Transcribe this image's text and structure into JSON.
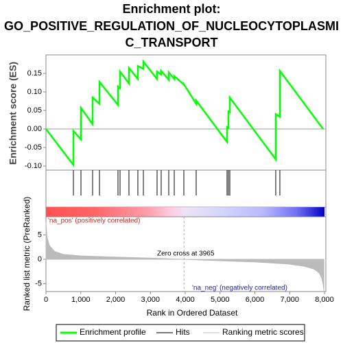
{
  "chart_data": {
    "type": "line",
    "title": [
      "Enrichment plot:",
      "GO_POSITIVE_REGULATION_OF_NUCLEOCYTOPLASMI",
      "C_TRANSPORT"
    ],
    "ylabel": "Enrichment score (ES)",
    "y2label": "Ranked list metric (PreRanked)",
    "xlabel": "Rank in Ordered Dataset",
    "xlim": [
      0,
      8040
    ],
    "xticks": [
      0,
      {
        "value": 1000,
        "label": "1,000"
      },
      {
        "value": 2000,
        "label": "2,000"
      },
      {
        "value": 3000,
        "label": "3,000"
      },
      {
        "value": 4000,
        "label": "4,000"
      },
      {
        "value": 5000,
        "label": "5,000"
      },
      {
        "value": 6000,
        "label": "6,000"
      },
      {
        "value": 7000,
        "label": "7,000"
      },
      {
        "value": 8000,
        "label": "8,000"
      }
    ],
    "ylim": [
      -0.111,
      0.2
    ],
    "yticks": [
      {
        "value": -0.1,
        "label": "-0.10"
      },
      {
        "value": -0.05,
        "label": "-0.05"
      },
      {
        "value": 0,
        "label": "0.00"
      },
      {
        "value": 0.05,
        "label": "0.05"
      },
      {
        "value": 0.1,
        "label": "0.10"
      },
      {
        "value": 0.15,
        "label": "0.15"
      }
    ],
    "y2lim": [
      -6.6,
      8.7
    ],
    "y2ticks": [
      5,
      0,
      -5
    ],
    "series": [
      {
        "name": "Enrichment profile",
        "color": "#00ff00",
        "x": [
          0,
          788,
          788,
          1005,
          1005,
          1340,
          1340,
          1537,
          1537,
          2069,
          2069,
          2128,
          2128,
          2384,
          2384,
          2640,
          2640,
          2798,
          2798,
          3192,
          3192,
          3310,
          3310,
          3527,
          3527,
          3685,
          3685,
          3961,
          3961,
          4315,
          4315,
          5202,
          5202,
          5241,
          5241,
          5281,
          5281,
          6601,
          6601,
          6719,
          6719,
          7962
        ],
        "values": [
          0,
          -0.097,
          -0.005,
          -0.028,
          0.057,
          0.013,
          0.085,
          0.068,
          0.127,
          0.065,
          0.115,
          0.11,
          0.155,
          0.123,
          0.165,
          0.135,
          0.17,
          0.162,
          0.182,
          0.135,
          0.155,
          0.147,
          0.157,
          0.133,
          0.153,
          0.135,
          0.143,
          0.12,
          0.121,
          0.068,
          0.077,
          -0.035,
          0.005,
          0.003,
          0.047,
          0.045,
          0.085,
          -0.082,
          0.04,
          0.033,
          0.157,
          0
        ]
      }
    ],
    "hits": {
      "name": "Hits",
      "color": "#000000",
      "values": [
        788,
        1005,
        1340,
        1537,
        2069,
        2128,
        2384,
        2640,
        2798,
        3192,
        3310,
        3527,
        3685,
        3961,
        4315,
        5202,
        5241,
        5281,
        6601,
        6719
      ]
    },
    "metric": {
      "name": "Ranking metric scores",
      "color": "#bbbbbb",
      "x": [
        0,
        30,
        100,
        250,
        500,
        1000,
        2000,
        3000,
        3965,
        5000,
        6000,
        6500,
        7000,
        7400,
        7700,
        7850,
        7920,
        7960,
        7985
      ],
      "values": [
        7.5,
        4.5,
        2.8,
        1.6,
        1.0,
        0.7,
        0.45,
        0.25,
        0,
        -0.3,
        -0.55,
        -0.75,
        -1.0,
        -1.4,
        -2.0,
        -2.8,
        -3.8,
        -5,
        -6.4
      ]
    },
    "zero_cross": 3965,
    "annotations": [
      "Zero cross at 3965",
      "'na_pos' (positively correlated)",
      "'na_neg' (negatively correlated)"
    ]
  }
}
